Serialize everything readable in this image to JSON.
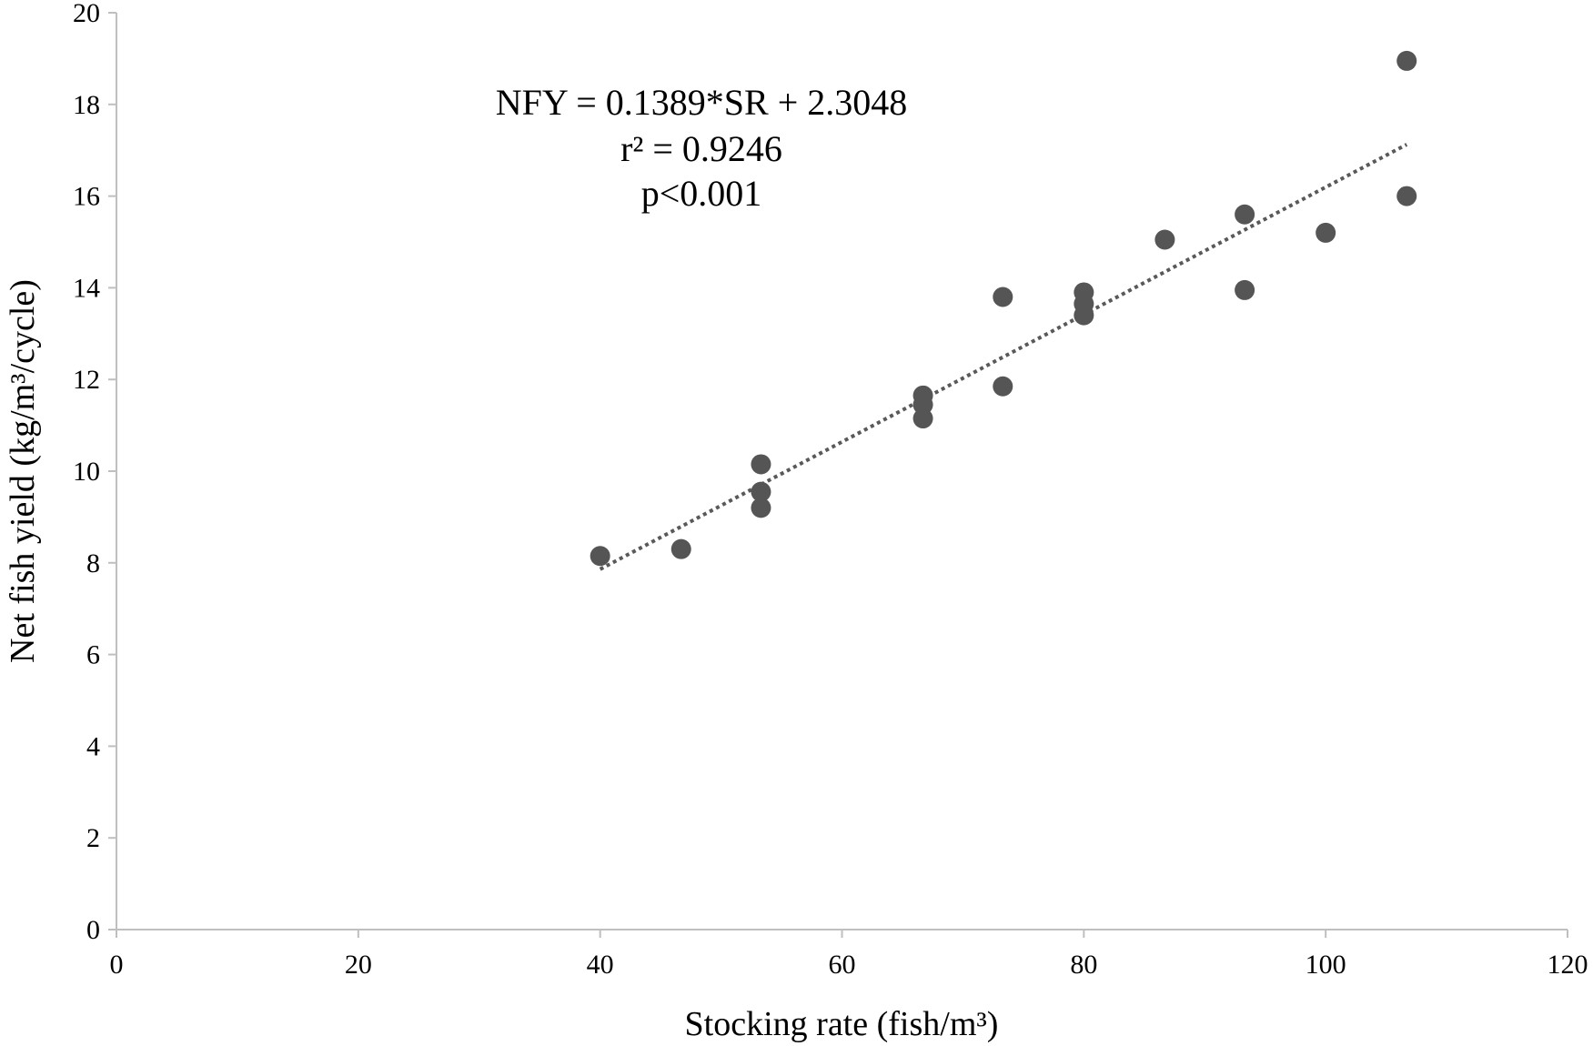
{
  "chart_data": {
    "type": "scatter",
    "title": "",
    "xlabel": "Stocking rate (fish/m³)",
    "ylabel": "Net  fish yield (kg/m³/cycle)",
    "xlim": [
      0,
      120
    ],
    "ylim": [
      0,
      20
    ],
    "x_ticks": [
      "0",
      "20",
      "40",
      "60",
      "80",
      "100",
      "120"
    ],
    "y_ticks": [
      "0",
      "2",
      "4",
      "6",
      "8",
      "10",
      "12",
      "14",
      "16",
      "18",
      "20"
    ],
    "grid": false,
    "legend": "none",
    "colors": {
      "points": "#555555",
      "trendline": "#595959",
      "axes": "#bfbfbf"
    },
    "series": [
      {
        "x": [
          40,
          46.7,
          53.3,
          53.3,
          53.3,
          66.7,
          66.7,
          66.7,
          73.3,
          73.3,
          80,
          80,
          80,
          86.7,
          93.3,
          93.3,
          100,
          106.7,
          106.7
        ],
        "y": [
          8.15,
          8.3,
          10.15,
          9.55,
          9.2,
          11.65,
          11.45,
          11.15,
          13.8,
          11.85,
          13.9,
          13.65,
          13.4,
          15.05,
          15.6,
          13.95,
          15.2,
          18.95,
          16.0
        ]
      }
    ],
    "trendline": {
      "type": "linear",
      "slope": 0.1389,
      "intercept": 2.3048,
      "x_range": [
        40,
        106.7
      ]
    },
    "annotations": [
      "NFY = 0.1389*SR + 2.3048",
      "r² = 0.9246",
      "p<0.001"
    ]
  }
}
